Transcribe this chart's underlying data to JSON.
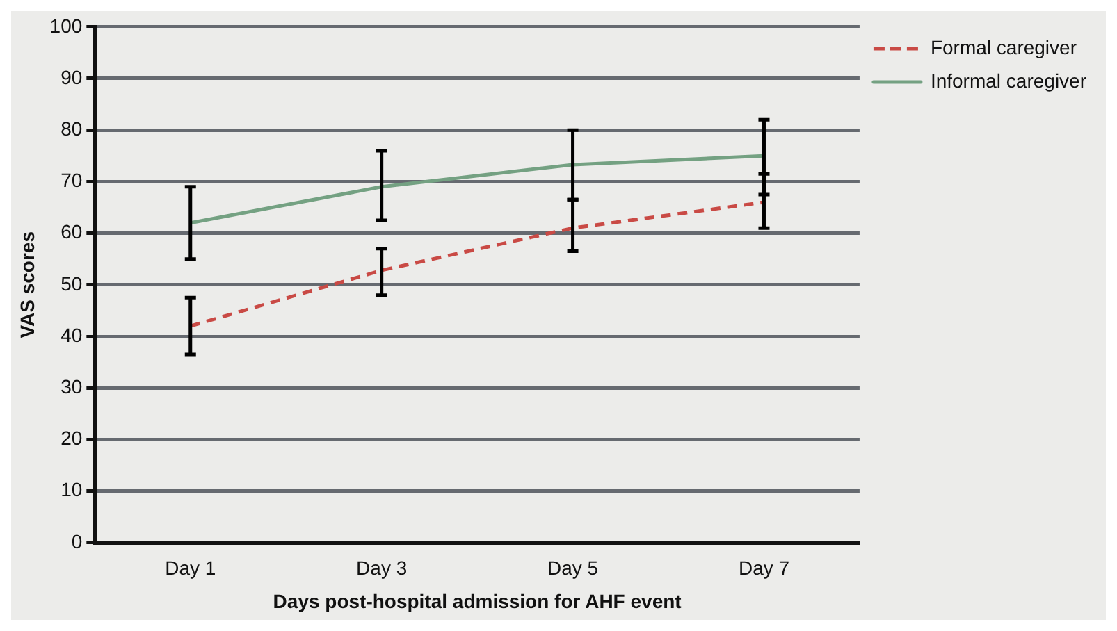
{
  "chart_data": {
    "type": "line",
    "xlabel": "Days post-hospital admission for AHF event",
    "ylabel": "VAS scores",
    "categories": [
      "Day 1",
      "Day 3",
      "Day 5",
      "Day 7"
    ],
    "series": [
      {
        "name": "Formal caregiver",
        "color": "#c94a45",
        "line_style": "dashed",
        "values": [
          42,
          52.8,
          61,
          66
        ],
        "errors": [
          [
            36.5,
            47.5
          ],
          [
            48,
            57
          ],
          [
            56.5,
            66.5
          ],
          [
            61,
            71.5
          ]
        ]
      },
      {
        "name": "Informal caregiver",
        "color": "#74a182",
        "line_style": "solid",
        "values": [
          62,
          69,
          73.3,
          75
        ],
        "errors": [
          [
            55,
            69
          ],
          [
            62.5,
            76
          ],
          [
            66.5,
            80
          ],
          [
            67.5,
            82
          ]
        ]
      }
    ],
    "ylim": [
      0,
      100
    ],
    "yticks": [
      0,
      10,
      20,
      30,
      40,
      50,
      60,
      70,
      80,
      90,
      100
    ],
    "grid": "y",
    "legend": "top right",
    "marker": "none"
  }
}
